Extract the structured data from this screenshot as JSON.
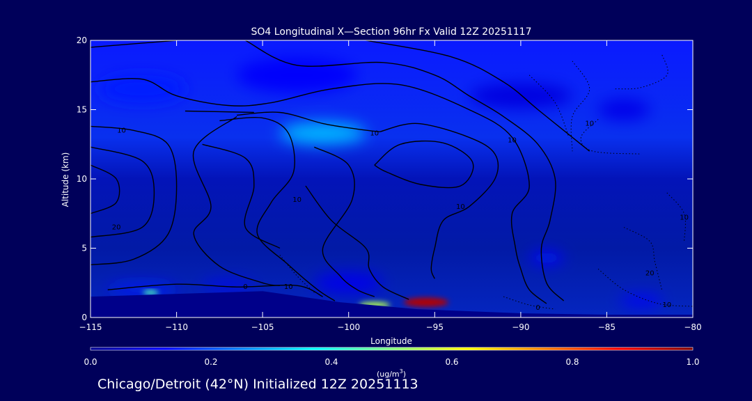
{
  "chart_data": {
    "type": "heatmap",
    "title": "SO4 Longitudinal X—Section 96hr  Fx Valid 12Z 20251117",
    "xlabel": "Longitude",
    "ylabel": "Altitude (km)",
    "xlim": [
      -115,
      -80
    ],
    "ylim": [
      0,
      20
    ],
    "x_ticks": [
      -115,
      -110,
      -105,
      -100,
      -95,
      -90,
      -85,
      -80
    ],
    "x_tick_labels": [
      "−115",
      "−110",
      "−105",
      "−100",
      "−95",
      "−90",
      "−85",
      "−80"
    ],
    "y_ticks": [
      0,
      5,
      10,
      15,
      20
    ],
    "colorbar": {
      "label_prefix": "(ug/m",
      "label_power": "3",
      "label_suffix": ")",
      "range": [
        0,
        1
      ],
      "ticks": [
        0.0,
        0.2,
        0.4,
        0.6,
        0.8,
        1.0
      ],
      "tick_labels": [
        "0.0",
        "0.2",
        "0.4",
        "0.6",
        "0.8",
        "1.0"
      ],
      "colormap": [
        "#00008f",
        "#0000ff",
        "#0080ff",
        "#00ffff",
        "#80ff80",
        "#ffff00",
        "#ff8000",
        "#ff0000",
        "#800000"
      ]
    },
    "concentration_features": [
      {
        "lon": -101.5,
        "alt": 13.3,
        "dlon": 5.0,
        "dalt": 1.6,
        "value": 0.3
      },
      {
        "lon": -112,
        "alt": 16.5,
        "dlon": 5.0,
        "dalt": 2.0,
        "value": 0.15
      },
      {
        "lon": -103,
        "alt": 17.5,
        "dlon": 7.0,
        "dalt": 2.5,
        "value": 0.12
      },
      {
        "lon": -90,
        "alt": 16.0,
        "dlon": 6.0,
        "dalt": 1.8,
        "value": 0.09
      },
      {
        "lon": -84,
        "alt": 15.0,
        "dlon": 3.0,
        "dalt": 1.5,
        "value": 0.1
      },
      {
        "lon": -100,
        "alt": 2.5,
        "dlon": 4.0,
        "dalt": 1.5,
        "value": 0.1
      },
      {
        "lon": -112,
        "alt": 2.0,
        "dlon": 4.0,
        "dalt": 0.8,
        "value": 0.15
      },
      {
        "lon": -107,
        "alt": 2.3,
        "dlon": 3.0,
        "dalt": 0.6,
        "value": 0.12
      },
      {
        "lon": -88.5,
        "alt": 4.3,
        "dlon": 2.0,
        "dalt": 0.9,
        "value": 0.14
      },
      {
        "lon": -83,
        "alt": 1.2,
        "dlon": 2.5,
        "dalt": 0.8,
        "value": 0.12
      },
      {
        "lon": -95.5,
        "alt": 1.1,
        "dlon": 2.6,
        "dalt": 0.65,
        "value": 0.95
      },
      {
        "lon": -98.5,
        "alt": 0.9,
        "dlon": 1.8,
        "dalt": 0.45,
        "value": 0.55
      },
      {
        "lon": -111.5,
        "alt": 1.8,
        "dlon": 0.9,
        "dalt": 0.35,
        "value": 0.45
      }
    ],
    "surface_height": [
      {
        "lon": -115,
        "alt": 1.5
      },
      {
        "lon": -105,
        "alt": 1.9
      },
      {
        "lon": -100.5,
        "alt": 1.1
      },
      {
        "lon": -96,
        "alt": 0.6
      },
      {
        "lon": -90,
        "alt": 0.3
      },
      {
        "lon": -85,
        "alt": 0.2
      },
      {
        "lon": -80,
        "alt": 0.2
      }
    ],
    "solid_contours": [
      {
        "label": "10",
        "label_at": [
          -113.2,
          13.5
        ],
        "points": [
          [
            -115,
            13.8
          ],
          [
            -112.5,
            13.5
          ],
          [
            -110.5,
            12.5
          ],
          [
            -110,
            9.5
          ],
          [
            -110.5,
            6.0
          ],
          [
            -112.5,
            4.2
          ],
          [
            -115,
            3.8
          ]
        ]
      },
      {
        "label": "20",
        "label_at": [
          -113.5,
          6.5
        ],
        "points": [
          [
            -115,
            12.3
          ],
          [
            -112,
            11.3
          ],
          [
            -111.3,
            9.0
          ],
          [
            -112,
            6.5
          ],
          [
            -115,
            5.8
          ]
        ]
      },
      {
        "label": "",
        "label_at": null,
        "points": [
          [
            -115,
            11.0
          ],
          [
            -113.5,
            10.0
          ],
          [
            -113.5,
            8.3
          ],
          [
            -115,
            7.5
          ]
        ]
      },
      {
        "label": "10",
        "label_at": [
          -103,
          8.5
        ],
        "points": [
          [
            -107.5,
            14.2
          ],
          [
            -105,
            14.4
          ],
          [
            -103.5,
            13.3
          ],
          [
            -103.2,
            10.5
          ],
          [
            -104.5,
            8.3
          ],
          [
            -105.3,
            6.0
          ],
          [
            -103.5,
            3.8
          ],
          [
            -101.8,
            2.0
          ],
          [
            -100.8,
            1.2
          ]
        ]
      },
      {
        "label": "10",
        "label_at": [
          -98.5,
          13.3
        ],
        "points": [
          [
            -106.5,
            14.6
          ],
          [
            -104,
            14.8
          ],
          [
            -101.5,
            14.0
          ],
          [
            -99.5,
            13.6
          ],
          [
            -98.2,
            13.4
          ]
        ]
      },
      {
        "label": "",
        "label_at": null,
        "points": [
          [
            -109.5,
            14.9
          ],
          [
            -105.5,
            14.8
          ]
        ]
      },
      {
        "label": "",
        "label_at": null,
        "points": [
          [
            -106.5,
            14.5
          ],
          [
            -109,
            12.0
          ],
          [
            -108,
            8.0
          ],
          [
            -109,
            6.0
          ],
          [
            -107.5,
            3.7
          ],
          [
            -105,
            2.5
          ],
          [
            -104,
            2.3
          ]
        ]
      },
      {
        "label": "",
        "label_at": null,
        "points": [
          [
            -108.5,
            12.5
          ],
          [
            -106,
            11.5
          ],
          [
            -105.5,
            9.5
          ],
          [
            -106,
            6.5
          ],
          [
            -104,
            5.0
          ]
        ]
      },
      {
        "label": "10",
        "label_at": [
          -90.5,
          12.8
        ],
        "points": [
          [
            -98.2,
            13.4
          ],
          [
            -96,
            14.0
          ],
          [
            -93,
            13.0
          ],
          [
            -91.5,
            11.8
          ],
          [
            -91.5,
            10.0
          ],
          [
            -93,
            8.0
          ],
          [
            -94.5,
            7.0
          ],
          [
            -95,
            5.0
          ],
          [
            -95.2,
            3.5
          ],
          [
            -95,
            2.8
          ]
        ]
      },
      {
        "label": "",
        "label_at": null,
        "points": [
          [
            -98.5,
            11.0
          ],
          [
            -97,
            12.5
          ],
          [
            -94.5,
            12.6
          ],
          [
            -92.8,
            11.2
          ],
          [
            -93.5,
            9.5
          ],
          [
            -95.8,
            9.6
          ],
          [
            -97.8,
            10.5
          ],
          [
            -98.5,
            11.0
          ]
        ]
      },
      {
        "label": "10",
        "label_at": [
          -93.5,
          8.0
        ],
        "points": [
          [
            -102,
            12.3
          ],
          [
            -100,
            11.0
          ],
          [
            -99.8,
            8.5
          ],
          [
            -101.5,
            5.0
          ],
          [
            -100.5,
            3.0
          ],
          [
            -99.5,
            2.0
          ],
          [
            -98.5,
            1.5
          ]
        ]
      },
      {
        "label": "",
        "label_at": null,
        "points": [
          [
            -102.5,
            9.5
          ],
          [
            -101,
            7.0
          ],
          [
            -99,
            5.0
          ],
          [
            -98.8,
            3.5
          ],
          [
            -98,
            2.2
          ],
          [
            -96.5,
            1.3
          ]
        ]
      },
      {
        "label": "",
        "label_at": null,
        "points": [
          [
            -115,
            17.0
          ],
          [
            -112,
            17.2
          ],
          [
            -110,
            16.0
          ],
          [
            -107,
            15.3
          ],
          [
            -104.5,
            15.5
          ],
          [
            -101,
            16.5
          ],
          [
            -97,
            16.8
          ],
          [
            -93,
            15.0
          ],
          [
            -90.5,
            13.0
          ],
          [
            -89.5,
            9.5
          ],
          [
            -90.5,
            7.5
          ],
          [
            -90.3,
            5.0
          ],
          [
            -90,
            3.5
          ],
          [
            -89.5,
            2.0
          ],
          [
            -88.5,
            1.0
          ]
        ]
      },
      {
        "label": "",
        "label_at": null,
        "points": [
          [
            -115,
            19.5
          ],
          [
            -110,
            20.0
          ]
        ]
      },
      {
        "label": "",
        "label_at": null,
        "points": [
          [
            -106,
            20.0
          ],
          [
            -103,
            18.2
          ],
          [
            -98,
            18.4
          ],
          [
            -95,
            17.5
          ],
          [
            -93,
            16.0
          ],
          [
            -91,
            14.5
          ],
          [
            -89,
            12.5
          ],
          [
            -88,
            10.0
          ],
          [
            -88.3,
            7.0
          ],
          [
            -88.8,
            5.0
          ],
          [
            -88.5,
            2.5
          ],
          [
            -87.5,
            1.2
          ]
        ]
      },
      {
        "label": "",
        "label_at": null,
        "points": [
          [
            -99,
            20.0
          ],
          [
            -94,
            18.8
          ],
          [
            -91,
            17.0
          ],
          [
            -89,
            15.0
          ],
          [
            -87,
            13.0
          ],
          [
            -86,
            12.0
          ]
        ]
      },
      {
        "label": "0",
        "label_at": [
          -106,
          2.2
        ],
        "points": [
          [
            -114,
            2.0
          ],
          [
            -110,
            2.4
          ],
          [
            -106.5,
            2.2
          ],
          [
            -103,
            2.3
          ],
          [
            -101.5,
            1.5
          ]
        ]
      }
    ],
    "dotted_contours": [
      {
        "label": "10",
        "label_at": [
          -86,
          14.0
        ],
        "points": [
          [
            -85.5,
            14.3
          ],
          [
            -86.5,
            13.0
          ],
          [
            -85.8,
            12.0
          ],
          [
            -83,
            11.8
          ]
        ]
      },
      {
        "label": "",
        "label_at": null,
        "points": [
          [
            -87,
            18.5
          ],
          [
            -86,
            16.5
          ],
          [
            -87,
            14.5
          ],
          [
            -87,
            12.0
          ]
        ]
      },
      {
        "label": "",
        "label_at": null,
        "points": [
          [
            -84.5,
            16.5
          ],
          [
            -83,
            16.6
          ],
          [
            -81.5,
            17.5
          ],
          [
            -81.8,
            19.0
          ]
        ]
      },
      {
        "label": "",
        "label_at": null,
        "points": [
          [
            -89.5,
            17.5
          ],
          [
            -88,
            15.5
          ],
          [
            -87.2,
            13.0
          ]
        ]
      },
      {
        "label": "20",
        "label_at": [
          -82.5,
          3.2
        ],
        "points": [
          [
            -84,
            6.5
          ],
          [
            -82.5,
            5.5
          ],
          [
            -82.2,
            4.0
          ],
          [
            -81.8,
            2.0
          ]
        ]
      },
      {
        "label": "10",
        "label_at": [
          -81.5,
          0.9
        ],
        "points": [
          [
            -85.5,
            3.5
          ],
          [
            -84,
            2.0
          ],
          [
            -82,
            1.0
          ],
          [
            -80,
            0.8
          ]
        ]
      },
      {
        "label": "10",
        "label_at": [
          -80.5,
          7.2
        ],
        "points": [
          [
            -81.5,
            9.0
          ],
          [
            -80.5,
            7.5
          ],
          [
            -80.5,
            5.5
          ]
        ]
      },
      {
        "label": "0",
        "label_at": [
          -89,
          0.7
        ],
        "points": [
          [
            -91,
            1.5
          ],
          [
            -89.5,
            0.9
          ],
          [
            -88,
            0.6
          ]
        ]
      },
      {
        "label": "10",
        "label_at": [
          -103.5,
          2.2
        ],
        "points": [
          [
            -104,
            4.5
          ],
          [
            -103,
            3.0
          ],
          [
            -102,
            1.8
          ]
        ]
      }
    ]
  },
  "footer": "Chicago/Detroit (42°N) Initialized 12Z 20251113"
}
